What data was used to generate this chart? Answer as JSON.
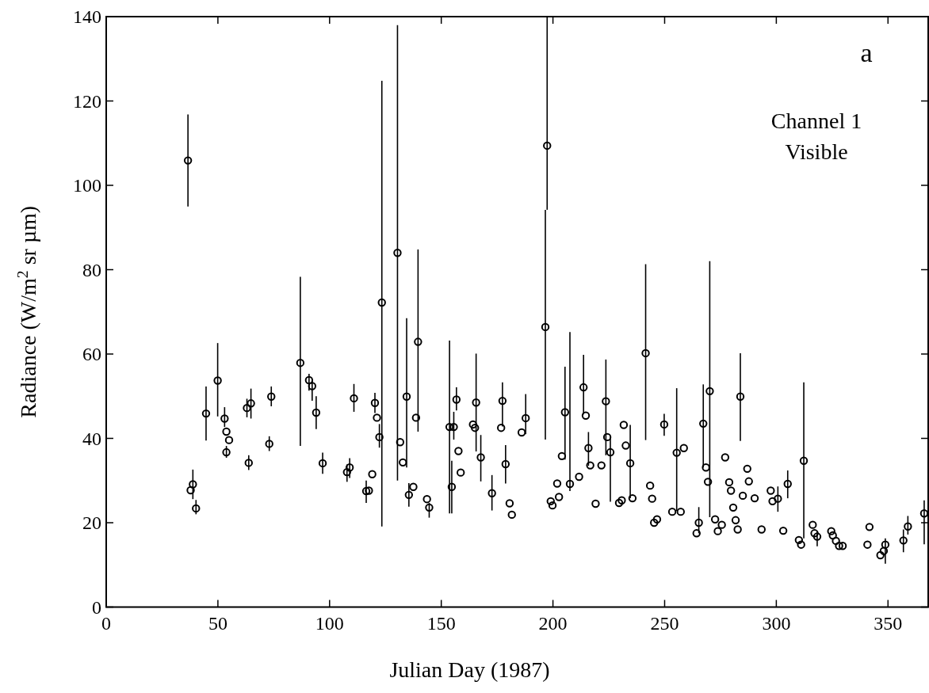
{
  "chart_data": {
    "type": "scatter",
    "xlabel": "Julian Day (1987)",
    "ylabel": "Radiance (W/m$^{2}$ sr µm)",
    "annotations": [
      "a",
      "Channel 1",
      "Visible"
    ],
    "xlim": [
      0,
      368
    ],
    "xticks": [
      0,
      50,
      100,
      150,
      200,
      250,
      300,
      350
    ],
    "ylim": [
      0,
      140
    ],
    "yticks": [
      0,
      20,
      40,
      60,
      80,
      100,
      120,
      140
    ],
    "grid": false,
    "marker": "circle",
    "series": [
      {
        "color": "#000000",
        "x": [
          36.6,
          37.8,
          38.8,
          40.2,
          44.7,
          49.9,
          53.0,
          53.8,
          55.0,
          53.8,
          63.0,
          64.8,
          63.8,
          73.9,
          73.0,
          86.9,
          90.8,
          92.2,
          94.0,
          96.9,
          107.8,
          109.0,
          110.9,
          116.4,
          117.6,
          119.1,
          120.3,
          121.2,
          122.3,
          123.4,
          130.4,
          131.6,
          132.8,
          134.5,
          135.5,
          137.5,
          138.7,
          139.6,
          143.6,
          144.6,
          153.7,
          154.7,
          155.6,
          156.8,
          157.7,
          158.7,
          164.2,
          165.1,
          165.6,
          167.7,
          172.7,
          176.8,
          177.4,
          178.8,
          180.6,
          181.6,
          186.0,
          187.8,
          196.6,
          197.4,
          199.0,
          199.8,
          201.9,
          202.7,
          204.0,
          205.4,
          207.6,
          211.7,
          213.7,
          214.7,
          215.9,
          216.7,
          219.1,
          221.7,
          223.7,
          224.3,
          225.7,
          229.6,
          230.8,
          231.7,
          232.6,
          234.6,
          235.6,
          241.5,
          243.5,
          244.4,
          245.3,
          246.6,
          249.8,
          253.4,
          255.4,
          257.2,
          258.6,
          264.3,
          265.3,
          267.3,
          268.5,
          269.4,
          270.2,
          272.6,
          273.8,
          275.6,
          277.1,
          278.9,
          279.7,
          280.7,
          281.8,
          282.7,
          283.9,
          285.0,
          287.0,
          287.7,
          290.3,
          293.4,
          297.5,
          298.3,
          300.7,
          303.1,
          305.1,
          310.1,
          311.1,
          312.3,
          316.3,
          317.1,
          318.3,
          324.6,
          325.3,
          326.7,
          328.1,
          329.7,
          340.8,
          341.7,
          346.6,
          348.1,
          348.8,
          356.9,
          358.9,
          366.2
        ],
        "values": [
          105.9,
          27.7,
          29.1,
          23.4,
          45.9,
          53.7,
          44.7,
          41.6,
          39.6,
          36.7,
          47.2,
          48.3,
          34.2,
          49.9,
          38.7,
          57.9,
          53.8,
          52.4,
          46.1,
          34.1,
          32.0,
          33.1,
          49.5,
          27.5,
          27.6,
          31.5,
          48.4,
          44.9,
          40.3,
          72.2,
          84.0,
          39.1,
          34.3,
          49.9,
          26.6,
          28.5,
          44.9,
          62.9,
          25.6,
          23.6,
          42.7,
          28.5,
          42.7,
          49.2,
          37.0,
          31.9,
          43.3,
          42.5,
          48.5,
          35.5,
          27.0,
          42.5,
          48.9,
          33.9,
          24.6,
          21.9,
          41.4,
          44.8,
          66.4,
          109.4,
          25.1,
          24.1,
          29.3,
          26.1,
          35.8,
          46.2,
          29.2,
          30.9,
          52.1,
          45.4,
          37.7,
          33.6,
          24.5,
          33.6,
          48.8,
          40.3,
          36.7,
          24.7,
          25.3,
          43.2,
          38.3,
          34.1,
          25.8,
          60.2,
          28.8,
          25.7,
          20.0,
          20.8,
          43.3,
          22.6,
          36.6,
          22.6,
          37.7,
          17.5,
          20.0,
          43.5,
          33.1,
          29.7,
          51.2,
          20.8,
          18.0,
          19.5,
          35.5,
          29.6,
          27.6,
          23.6,
          20.6,
          18.4,
          49.9,
          26.4,
          32.8,
          29.8,
          25.8,
          18.4,
          27.6,
          25.1,
          25.7,
          18.1,
          29.2,
          15.9,
          14.8,
          34.7,
          19.5,
          17.5,
          16.7,
          18.0,
          17.0,
          15.7,
          14.5,
          14.5,
          14.8,
          19.0,
          12.3,
          13.3,
          14.8,
          15.8,
          19.1,
          22.2
        ],
        "errors": [
          [
            95.0,
            116.8
          ],
          null,
          [
            25.6,
            32.6
          ],
          [
            22.0,
            25.4
          ],
          [
            39.5,
            52.3
          ],
          [
            45.2,
            62.6
          ],
          [
            42.7,
            47.4
          ],
          null,
          null,
          [
            35.4,
            38.2
          ],
          [
            45.0,
            49.4
          ],
          [
            44.7,
            51.8
          ],
          [
            32.5,
            36.0
          ],
          [
            47.6,
            52.3
          ],
          [
            37.0,
            40.5
          ],
          [
            38.2,
            78.3
          ],
          [
            51.3,
            55.3
          ],
          [
            48.9,
            54.0
          ],
          [
            42.2,
            50.0
          ],
          [
            31.6,
            36.6
          ],
          [
            29.7,
            33.8
          ],
          [
            30.6,
            35.3
          ],
          [
            46.3,
            52.9
          ],
          [
            24.7,
            30.0
          ],
          null,
          null,
          [
            46.0,
            50.8
          ],
          null,
          [
            37.8,
            43.4
          ],
          [
            19.1,
            124.8
          ],
          [
            30.0,
            138.0
          ],
          null,
          null,
          [
            33.1,
            68.5
          ],
          [
            23.8,
            29.4
          ],
          null,
          null,
          [
            41.6,
            84.8
          ],
          null,
          [
            21.2,
            24.7
          ],
          [
            22.2,
            63.2
          ],
          [
            22.2,
            34.7
          ],
          [
            39.7,
            46.3
          ],
          [
            46.6,
            52.1
          ],
          null,
          null,
          null,
          null,
          [
            36.9,
            60.1
          ],
          [
            29.8,
            40.8
          ],
          [
            22.9,
            31.3
          ],
          null,
          [
            42.8,
            53.3
          ],
          [
            29.3,
            38.4
          ],
          null,
          null,
          null,
          [
            41.0,
            50.5
          ],
          [
            39.7,
            94.2
          ],
          [
            94.2,
            140
          ],
          null,
          null,
          null,
          null,
          null,
          [
            35.0,
            57.0
          ],
          [
            27.5,
            65.2
          ],
          null,
          [
            45.7,
            59.8
          ],
          null,
          [
            33.5,
            41.5
          ],
          null,
          null,
          null,
          [
            36.0,
            58.7
          ],
          null,
          [
            25.0,
            40.0
          ],
          null,
          null,
          null,
          null,
          [
            25.8,
            43.2
          ],
          null,
          [
            39.6,
            81.3
          ],
          null,
          null,
          null,
          null,
          [
            40.6,
            45.8
          ],
          null,
          [
            22.8,
            51.9
          ],
          null,
          null,
          null,
          [
            17.5,
            23.7
          ],
          [
            33.1,
            52.8
          ],
          null,
          null,
          [
            21.3,
            82.0
          ],
          null,
          null,
          null,
          null,
          null,
          null,
          null,
          null,
          null,
          [
            39.4,
            60.2
          ],
          null,
          null,
          null,
          null,
          null,
          null,
          null,
          [
            22.6,
            28.6
          ],
          null,
          [
            25.8,
            32.4
          ],
          null,
          null,
          [
            16.3,
            53.3
          ],
          null,
          null,
          [
            14.4,
            18.0
          ],
          null,
          null,
          null,
          null,
          null,
          null,
          null,
          null,
          null,
          [
            10.3,
            16.3
          ],
          [
            13.0,
            18.4
          ],
          [
            17.2,
            21.6
          ],
          [
            14.9,
            25.3
          ]
        ]
      }
    ]
  }
}
